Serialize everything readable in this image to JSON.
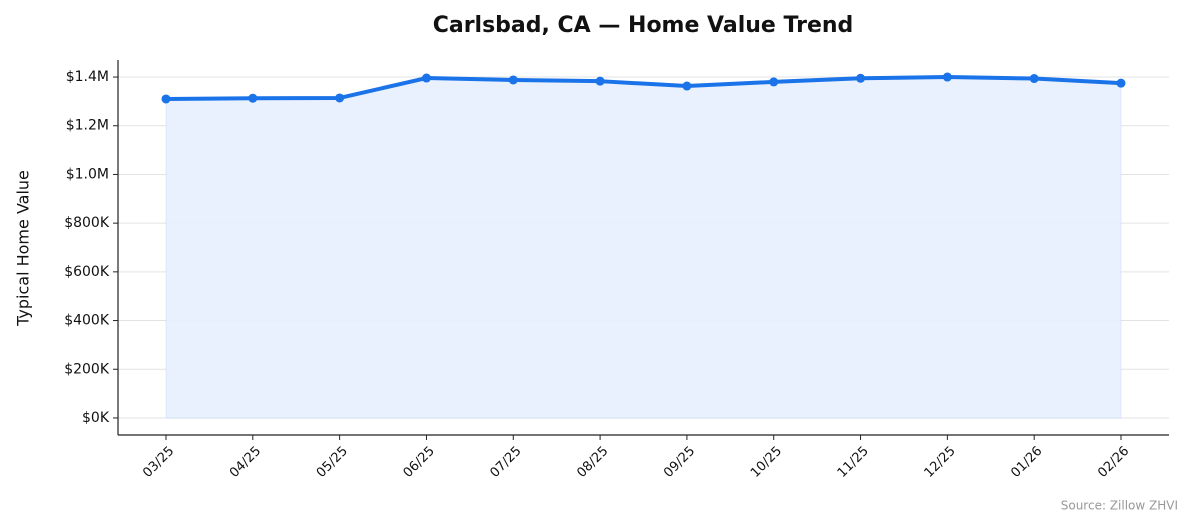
{
  "chart_data": {
    "type": "line",
    "title": "Carlsbad, CA — Home Value Trend",
    "y_label": "Typical Home Value",
    "source": "Source: Zillow ZHVI",
    "categories": [
      "03/25",
      "04/25",
      "05/25",
      "06/25",
      "07/25",
      "08/25",
      "09/25",
      "10/25",
      "11/25",
      "12/25",
      "01/26",
      "02/26"
    ],
    "series": [
      {
        "name": "Typical Home Value",
        "color": "#1a73e8",
        "area_color": "#e8f0fe",
        "values": [
          1310000,
          1313000,
          1314000,
          1396000,
          1388000,
          1383000,
          1363000,
          1380000,
          1395000,
          1400000,
          1394000,
          1375000
        ]
      }
    ],
    "ylim": [
      -70000,
      1470000
    ],
    "yticks": [
      {
        "value": 0,
        "label": "$0K"
      },
      {
        "value": 200000,
        "label": "$200K"
      },
      {
        "value": 400000,
        "label": "$400K"
      },
      {
        "value": 600000,
        "label": "$600K"
      },
      {
        "value": 800000,
        "label": "$800K"
      },
      {
        "value": 1000000,
        "label": "$1.0M"
      },
      {
        "value": 1200000,
        "label": "$1.2M"
      },
      {
        "value": 1400000,
        "label": "$1.4M"
      }
    ],
    "grid": true
  }
}
